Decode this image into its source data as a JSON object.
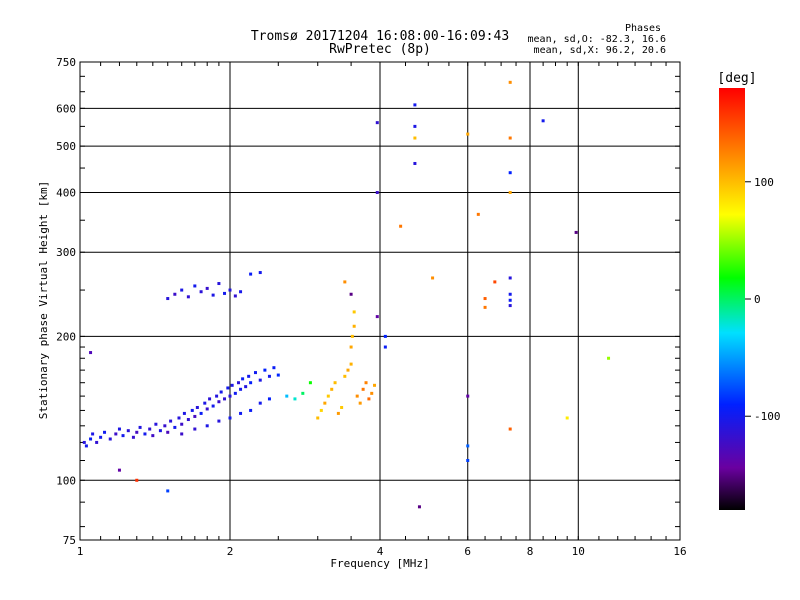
{
  "chart_data": {
    "type": "scatter",
    "title": "Tromsø 20171204 16:08:00-16:09:43",
    "subtitle": "RwPretec (8p)",
    "xlabel": "Frequency [MHz]",
    "ylabel": "Stationary phase Virtual Height [km]",
    "x_scale": "log",
    "y_scale": "log",
    "xlim": [
      1,
      16
    ],
    "ylim": [
      75,
      750
    ],
    "x_ticks": [
      "1",
      "2",
      "4",
      "6",
      "8",
      "10",
      "16"
    ],
    "y_ticks": [
      "750",
      "600",
      "500",
      "400",
      "300",
      "200",
      "100",
      "75"
    ],
    "stats_header": "Phases",
    "stats_o": "mean, sd,O: -82.3, 16.6",
    "stats_x": "mean, sd,X:  96.2, 20.6",
    "colorbar_label": "[deg]",
    "colorbar_range": [
      -180,
      180
    ],
    "colorbar_ticks": [
      "100",
      "0",
      "-100"
    ],
    "points": [
      [
        1.02,
        120,
        -110
      ],
      [
        1.03,
        118,
        -100
      ],
      [
        1.05,
        122,
        -95
      ],
      [
        1.06,
        125,
        -105
      ],
      [
        1.08,
        120,
        -115
      ],
      [
        1.1,
        123,
        -100
      ],
      [
        1.12,
        126,
        -98
      ],
      [
        1.15,
        122,
        -110
      ],
      [
        1.18,
        125,
        -120
      ],
      [
        1.2,
        128,
        -105
      ],
      [
        1.22,
        124,
        -100
      ],
      [
        1.25,
        127,
        -112
      ],
      [
        1.28,
        123,
        -118
      ],
      [
        1.3,
        126,
        -125
      ],
      [
        1.32,
        129,
        -108
      ],
      [
        1.35,
        125,
        -100
      ],
      [
        1.38,
        128,
        -115
      ],
      [
        1.4,
        124,
        -122
      ],
      [
        1.42,
        131,
        -110
      ],
      [
        1.45,
        127,
        -105
      ],
      [
        1.48,
        130,
        -118
      ],
      [
        1.5,
        126,
        -128
      ],
      [
        1.52,
        133,
        -112
      ],
      [
        1.55,
        129,
        -100
      ],
      [
        1.58,
        135,
        -110
      ],
      [
        1.6,
        131,
        -120
      ],
      [
        1.62,
        138,
        -105
      ],
      [
        1.65,
        134,
        -115
      ],
      [
        1.68,
        140,
        -100
      ],
      [
        1.7,
        136,
        -125
      ],
      [
        1.72,
        142,
        -110
      ],
      [
        1.75,
        138,
        -95
      ],
      [
        1.78,
        145,
        -105
      ],
      [
        1.8,
        141,
        -118
      ],
      [
        1.82,
        148,
        -112
      ],
      [
        1.85,
        143,
        -100
      ],
      [
        1.88,
        150,
        -108
      ],
      [
        1.9,
        146,
        -120
      ],
      [
        1.92,
        153,
        -102
      ],
      [
        1.95,
        148,
        -115
      ],
      [
        1.98,
        156,
        -100
      ],
      [
        2.0,
        150,
        -110
      ],
      [
        2.02,
        158,
        -105
      ],
      [
        2.05,
        152,
        -98
      ],
      [
        2.08,
        160,
        -112
      ],
      [
        2.1,
        155,
        -100
      ],
      [
        2.12,
        163,
        -95
      ],
      [
        2.15,
        157,
        -108
      ],
      [
        2.18,
        165,
        -100
      ],
      [
        2.2,
        160,
        -92
      ],
      [
        2.25,
        168,
        -98
      ],
      [
        2.3,
        162,
        -105
      ],
      [
        2.35,
        170,
        -90
      ],
      [
        2.4,
        165,
        -100
      ],
      [
        2.45,
        172,
        -95
      ],
      [
        2.5,
        166,
        -88
      ],
      [
        1.6,
        125,
        -120
      ],
      [
        1.7,
        128,
        -115
      ],
      [
        1.8,
        130,
        -105
      ],
      [
        1.9,
        133,
        -110
      ],
      [
        2.0,
        135,
        -100
      ],
      [
        2.1,
        138,
        -98
      ],
      [
        2.2,
        140,
        -95
      ],
      [
        2.3,
        145,
        -100
      ],
      [
        2.4,
        148,
        -92
      ],
      [
        1.5,
        240,
        -110
      ],
      [
        1.55,
        245,
        -120
      ],
      [
        1.6,
        250,
        -105
      ],
      [
        1.65,
        242,
        -115
      ],
      [
        1.7,
        255,
        -100
      ],
      [
        1.75,
        248,
        -112
      ],
      [
        1.8,
        252,
        -118
      ],
      [
        1.85,
        244,
        -105
      ],
      [
        1.9,
        258,
        -110
      ],
      [
        1.95,
        246,
        -100
      ],
      [
        2.0,
        250,
        -108
      ],
      [
        2.05,
        243,
        -115
      ],
      [
        2.1,
        248,
        -102
      ],
      [
        2.2,
        270,
        -95
      ],
      [
        2.3,
        272,
        -100
      ],
      [
        2.6,
        150,
        -40
      ],
      [
        2.7,
        148,
        -20
      ],
      [
        2.8,
        152,
        0
      ],
      [
        2.9,
        160,
        20
      ],
      [
        3.0,
        135,
        100
      ],
      [
        3.05,
        140,
        90
      ],
      [
        3.1,
        145,
        110
      ],
      [
        3.15,
        150,
        95
      ],
      [
        3.2,
        155,
        105
      ],
      [
        3.25,
        160,
        100
      ],
      [
        3.3,
        138,
        115
      ],
      [
        3.35,
        142,
        95
      ],
      [
        3.4,
        165,
        100
      ],
      [
        3.45,
        170,
        110
      ],
      [
        3.5,
        175,
        105
      ],
      [
        3.5,
        190,
        110
      ],
      [
        3.52,
        200,
        100
      ],
      [
        3.55,
        210,
        105
      ],
      [
        3.55,
        225,
        95
      ],
      [
        3.6,
        150,
        120
      ],
      [
        3.65,
        145,
        115
      ],
      [
        3.7,
        155,
        130
      ],
      [
        3.75,
        160,
        125
      ],
      [
        3.8,
        148,
        135
      ],
      [
        3.85,
        152,
        120
      ],
      [
        3.9,
        158,
        110
      ],
      [
        3.4,
        260,
        120
      ],
      [
        3.5,
        245,
        -150
      ],
      [
        3.95,
        220,
        -140
      ],
      [
        3.95,
        400,
        -120
      ],
      [
        3.95,
        560,
        -115
      ],
      [
        4.1,
        200,
        -90
      ],
      [
        4.1,
        190,
        -95
      ],
      [
        4.7,
        610,
        -100
      ],
      [
        4.7,
        550,
        -105
      ],
      [
        4.7,
        520,
        100
      ],
      [
        4.7,
        460,
        -110
      ],
      [
        4.8,
        88,
        -150
      ],
      [
        4.4,
        340,
        130
      ],
      [
        5.1,
        265,
        120
      ],
      [
        6.0,
        530,
        110
      ],
      [
        6.0,
        110,
        -80
      ],
      [
        6.0,
        118,
        -70
      ],
      [
        6.0,
        150,
        -140
      ],
      [
        6.3,
        360,
        130
      ],
      [
        6.5,
        240,
        140
      ],
      [
        6.5,
        230,
        130
      ],
      [
        6.8,
        260,
        150
      ],
      [
        7.3,
        680,
        120
      ],
      [
        7.3,
        520,
        130
      ],
      [
        7.3,
        440,
        -90
      ],
      [
        7.3,
        400,
        110
      ],
      [
        7.3,
        265,
        -110
      ],
      [
        7.3,
        245,
        -100
      ],
      [
        7.3,
        238,
        -95
      ],
      [
        7.3,
        232,
        -110
      ],
      [
        7.3,
        128,
        140
      ],
      [
        8.5,
        565,
        -100
      ],
      [
        9.5,
        135,
        80
      ],
      [
        9.9,
        330,
        -150
      ],
      [
        11.5,
        180,
        50
      ],
      [
        1.05,
        185,
        -130
      ],
      [
        1.2,
        105,
        -140
      ],
      [
        1.3,
        100,
        160
      ],
      [
        1.5,
        95,
        -80
      ]
    ]
  }
}
